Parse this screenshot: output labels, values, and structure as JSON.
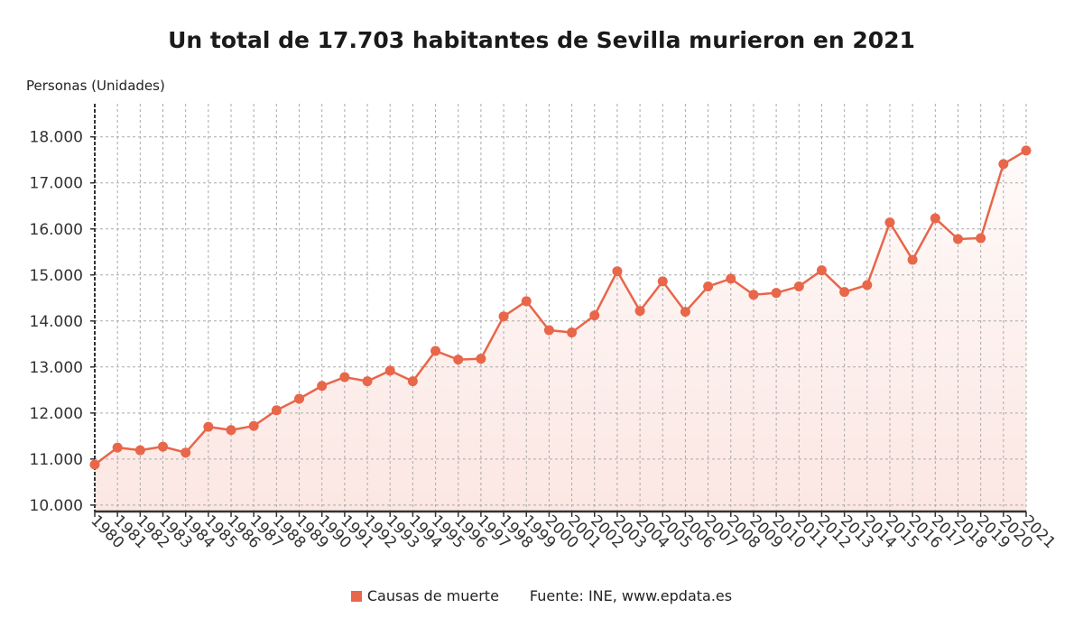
{
  "chart_data": {
    "type": "line",
    "title": "Un total de 17.703 habitantes de Sevilla murieron en 2021",
    "ylabel": "Personas (Unidades)",
    "xlabel": "",
    "x": [
      1980,
      1981,
      1982,
      1983,
      1984,
      1985,
      1986,
      1987,
      1988,
      1989,
      1990,
      1991,
      1992,
      1993,
      1994,
      1995,
      1996,
      1997,
      1998,
      1999,
      2000,
      2001,
      2002,
      2003,
      2004,
      2005,
      2006,
      2007,
      2008,
      2009,
      2010,
      2011,
      2012,
      2013,
      2014,
      2015,
      2016,
      2017,
      2018,
      2019,
      2020,
      2021
    ],
    "series": [
      {
        "name": "Causas de muerte",
        "color": "#e8664a",
        "values": [
          10880,
          11250,
          11190,
          11270,
          11140,
          11700,
          11630,
          11720,
          12060,
          12310,
          12590,
          12780,
          12690,
          12920,
          12690,
          13350,
          13160,
          13180,
          14100,
          14430,
          13800,
          13750,
          14120,
          15080,
          14220,
          14860,
          14200,
          14750,
          14920,
          14570,
          14610,
          14750,
          15100,
          14630,
          14780,
          16140,
          15330,
          16230,
          15780,
          15800,
          17410,
          17703
        ]
      }
    ],
    "yticks": [
      10000,
      11000,
      12000,
      13000,
      14000,
      15000,
      16000,
      17000,
      18000
    ],
    "ytick_labels": [
      "10.000",
      "11.000",
      "12.000",
      "13.000",
      "14.000",
      "15.000",
      "16.000",
      "17.000",
      "18.000"
    ],
    "ylim": [
      9860,
      18720
    ],
    "grid": true,
    "area_fill": true,
    "legend_placement": "bottom",
    "source": "Fuente: INE, www.epdata.es"
  }
}
